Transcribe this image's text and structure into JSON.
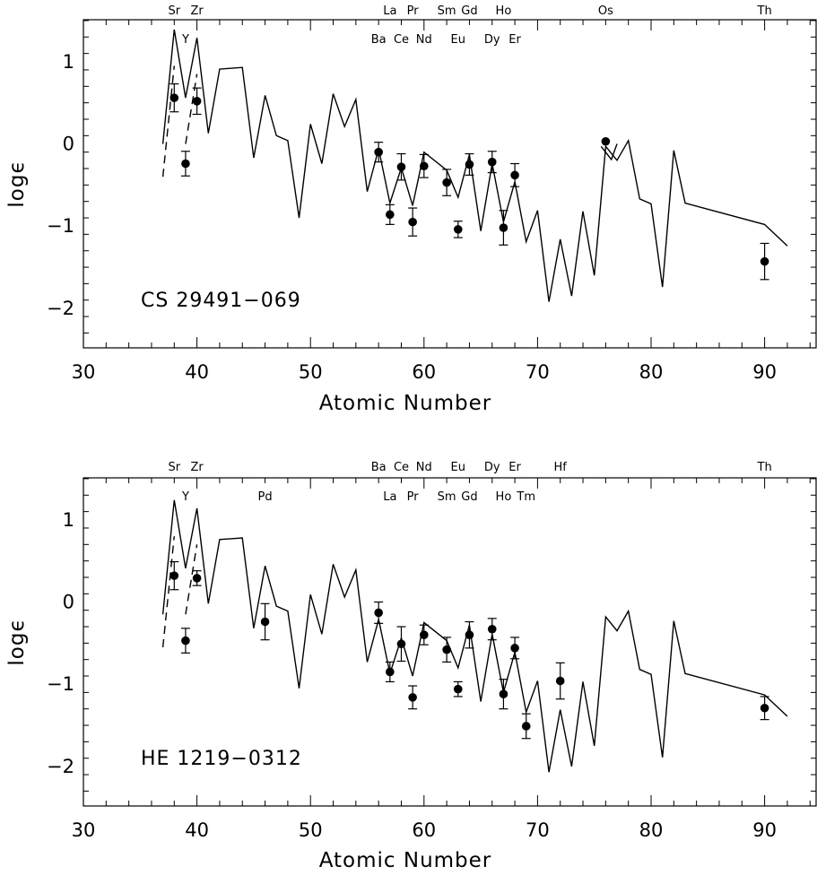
{
  "chart_data": [
    {
      "type": "scatter",
      "star_name": "CS 29491−069",
      "xlabel": "Atomic Number",
      "ylabel": "logϵ",
      "xlim": [
        30,
        92
      ],
      "ylim": [
        -2.5,
        1.5
      ],
      "x_ticks": [
        "30",
        "40",
        "50",
        "60",
        "70",
        "80",
        "90"
      ],
      "y_ticks": [
        "1",
        "0",
        "−1",
        "−2"
      ],
      "element_labels_top": [
        {
          "label": "Sr",
          "x": 38
        },
        {
          "label": "Zr",
          "x": 40
        },
        {
          "label": "La",
          "x": 57
        },
        {
          "label": "Pr",
          "x": 59
        },
        {
          "label": "Sm",
          "x": 62
        },
        {
          "label": "Gd",
          "x": 64
        },
        {
          "label": "Ho",
          "x": 67
        },
        {
          "label": "Os",
          "x": 76
        },
        {
          "label": "Th",
          "x": 90
        }
      ],
      "element_labels_bottom": [
        {
          "label": "Y",
          "x": 39
        },
        {
          "label": "Ba",
          "x": 56
        },
        {
          "label": "Ce",
          "x": 58
        },
        {
          "label": "Nd",
          "x": 60
        },
        {
          "label": "Eu",
          "x": 63
        },
        {
          "label": "Dy",
          "x": 66
        },
        {
          "label": "Er",
          "x": 68
        }
      ],
      "observed": [
        {
          "x": 38,
          "y": 0.56,
          "err": 0.17
        },
        {
          "x": 39,
          "y": -0.24,
          "err": 0.15
        },
        {
          "x": 40,
          "y": 0.52,
          "err": 0.16
        },
        {
          "x": 56,
          "y": -0.1,
          "err": 0.12
        },
        {
          "x": 57,
          "y": -0.86,
          "err": 0.12
        },
        {
          "x": 58,
          "y": -0.28,
          "err": 0.16
        },
        {
          "x": 59,
          "y": -0.95,
          "err": 0.17
        },
        {
          "x": 60,
          "y": -0.27,
          "err": 0.14
        },
        {
          "x": 62,
          "y": -0.47,
          "err": 0.16
        },
        {
          "x": 63,
          "y": -1.04,
          "err": 0.1
        },
        {
          "x": 64,
          "y": -0.25,
          "err": 0.13
        },
        {
          "x": 66,
          "y": -0.22,
          "err": 0.13
        },
        {
          "x": 67,
          "y": -1.02,
          "err": 0.21
        },
        {
          "x": 68,
          "y": -0.38,
          "err": 0.14
        },
        {
          "x": 76,
          "y": 0.03,
          "err": 0.0
        },
        {
          "x": 90,
          "y": -1.43,
          "err": 0.22
        }
      ],
      "model_line": [
        [
          37,
          0.0
        ],
        [
          38,
          1.39
        ],
        [
          39,
          0.56
        ],
        [
          40,
          1.29
        ],
        [
          41,
          0.13
        ],
        [
          42,
          0.91
        ],
        [
          44,
          0.93
        ],
        [
          45,
          -0.17
        ],
        [
          46,
          0.59
        ],
        [
          47,
          0.1
        ],
        [
          48,
          0.04
        ],
        [
          49,
          -0.9
        ],
        [
          50,
          0.24
        ],
        [
          51,
          -0.24
        ],
        [
          52,
          0.61
        ],
        [
          53,
          0.21
        ],
        [
          54,
          0.54
        ],
        [
          55,
          -0.58
        ],
        [
          56,
          -0.06
        ],
        [
          57,
          -0.72
        ],
        [
          58,
          -0.29
        ],
        [
          59,
          -0.75
        ],
        [
          60,
          -0.1
        ],
        [
          62,
          -0.32
        ],
        [
          63,
          -0.65
        ],
        [
          64,
          -0.13
        ],
        [
          65,
          -1.06
        ],
        [
          66,
          -0.24
        ],
        [
          67,
          -0.95
        ],
        [
          68,
          -0.46
        ],
        [
          69,
          -1.19
        ],
        [
          70,
          -0.81
        ],
        [
          71,
          -1.92
        ],
        [
          72,
          -1.16
        ],
        [
          73,
          -1.85
        ],
        [
          74,
          -0.82
        ],
        [
          75,
          -1.6
        ],
        [
          76,
          -0.03
        ],
        [
          77,
          -0.2
        ],
        [
          78,
          0.04
        ],
        [
          79,
          -0.67
        ],
        [
          80,
          -0.73
        ],
        [
          81,
          -1.74
        ],
        [
          82,
          -0.08
        ],
        [
          83,
          -0.72
        ],
        [
          90,
          -0.98
        ],
        [
          92,
          -1.24
        ]
      ],
      "model_dashed": [
        [
          [
            37,
            -0.4
          ],
          [
            38,
            0.95
          ]
        ],
        [
          [
            39,
            0.0
          ],
          [
            40,
            0.85
          ]
        ]
      ],
      "model_extra": [
        [
          75.6,
          -0.03
        ],
        [
          76.5,
          -0.19
        ],
        [
          77,
          0.0
        ]
      ]
    },
    {
      "type": "scatter",
      "star_name": "HE 1219−0312",
      "xlabel": "Atomic Number",
      "ylabel": "logϵ",
      "xlim": [
        30,
        92
      ],
      "ylim": [
        -2.5,
        1.5
      ],
      "x_ticks": [
        "30",
        "40",
        "50",
        "60",
        "70",
        "80",
        "90"
      ],
      "y_ticks": [
        "1",
        "0",
        "−1",
        "−2"
      ],
      "element_labels_top": [
        {
          "label": "Sr",
          "x": 38
        },
        {
          "label": "Zr",
          "x": 40
        },
        {
          "label": "Ba",
          "x": 56
        },
        {
          "label": "Ce",
          "x": 58
        },
        {
          "label": "Nd",
          "x": 60
        },
        {
          "label": "Eu",
          "x": 63
        },
        {
          "label": "Dy",
          "x": 66
        },
        {
          "label": "Er",
          "x": 68
        },
        {
          "label": "Hf",
          "x": 72
        },
        {
          "label": "Th",
          "x": 90
        }
      ],
      "element_labels_bottom": [
        {
          "label": "Y",
          "x": 39
        },
        {
          "label": "Pd",
          "x": 46
        },
        {
          "label": "La",
          "x": 57
        },
        {
          "label": "Pr",
          "x": 59
        },
        {
          "label": "Sm",
          "x": 62
        },
        {
          "label": "Gd",
          "x": 64
        },
        {
          "label": "Ho",
          "x": 67
        },
        {
          "label": "Tm",
          "x": 69
        }
      ],
      "observed": [
        {
          "x": 38,
          "y": 0.32,
          "err": 0.17
        },
        {
          "x": 39,
          "y": -0.47,
          "err": 0.15
        },
        {
          "x": 40,
          "y": 0.29,
          "err": 0.09
        },
        {
          "x": 46,
          "y": -0.24,
          "err": 0.22
        },
        {
          "x": 56,
          "y": -0.13,
          "err": 0.13
        },
        {
          "x": 57,
          "y": -0.85,
          "err": 0.12
        },
        {
          "x": 58,
          "y": -0.51,
          "err": 0.21
        },
        {
          "x": 59,
          "y": -1.16,
          "err": 0.14
        },
        {
          "x": 60,
          "y": -0.4,
          "err": 0.12
        },
        {
          "x": 62,
          "y": -0.58,
          "err": 0.15
        },
        {
          "x": 63,
          "y": -1.06,
          "err": 0.09
        },
        {
          "x": 64,
          "y": -0.4,
          "err": 0.16
        },
        {
          "x": 66,
          "y": -0.33,
          "err": 0.13
        },
        {
          "x": 67,
          "y": -1.12,
          "err": 0.18
        },
        {
          "x": 68,
          "y": -0.56,
          "err": 0.13
        },
        {
          "x": 69,
          "y": -1.51,
          "err": 0.15
        },
        {
          "x": 72,
          "y": -0.96,
          "err": 0.22
        },
        {
          "x": 90,
          "y": -1.29,
          "err": 0.14
        }
      ],
      "model_line": [
        [
          37,
          -0.15
        ],
        [
          38,
          1.24
        ],
        [
          39,
          0.41
        ],
        [
          40,
          1.14
        ],
        [
          41,
          -0.02
        ],
        [
          42,
          0.76
        ],
        [
          44,
          0.78
        ],
        [
          45,
          -0.32
        ],
        [
          46,
          0.44
        ],
        [
          47,
          -0.05
        ],
        [
          48,
          -0.11
        ],
        [
          49,
          -1.05
        ],
        [
          50,
          0.09
        ],
        [
          51,
          -0.39
        ],
        [
          52,
          0.46
        ],
        [
          53,
          0.06
        ],
        [
          54,
          0.39
        ],
        [
          55,
          -0.73
        ],
        [
          56,
          -0.21
        ],
        [
          57,
          -0.87
        ],
        [
          58,
          -0.44
        ],
        [
          59,
          -0.9
        ],
        [
          60,
          -0.25
        ],
        [
          62,
          -0.47
        ],
        [
          63,
          -0.8
        ],
        [
          64,
          -0.28
        ],
        [
          65,
          -1.21
        ],
        [
          66,
          -0.39
        ],
        [
          67,
          -1.1
        ],
        [
          68,
          -0.61
        ],
        [
          69,
          -1.34
        ],
        [
          70,
          -0.96
        ],
        [
          71,
          -2.07
        ],
        [
          72,
          -1.31
        ],
        [
          73,
          -2.0
        ],
        [
          74,
          -0.97
        ],
        [
          75,
          -1.75
        ],
        [
          76,
          -0.18
        ],
        [
          77,
          -0.35
        ],
        [
          78,
          -0.11
        ],
        [
          79,
          -0.82
        ],
        [
          80,
          -0.88
        ],
        [
          81,
          -1.89
        ],
        [
          82,
          -0.23
        ],
        [
          83,
          -0.87
        ],
        [
          90,
          -1.13
        ],
        [
          92,
          -1.39
        ]
      ],
      "model_dashed": [
        [
          [
            37,
            -0.55
          ],
          [
            38,
            0.8
          ]
        ],
        [
          [
            39,
            -0.15
          ],
          [
            40,
            0.7
          ]
        ]
      ],
      "model_extra": []
    }
  ]
}
